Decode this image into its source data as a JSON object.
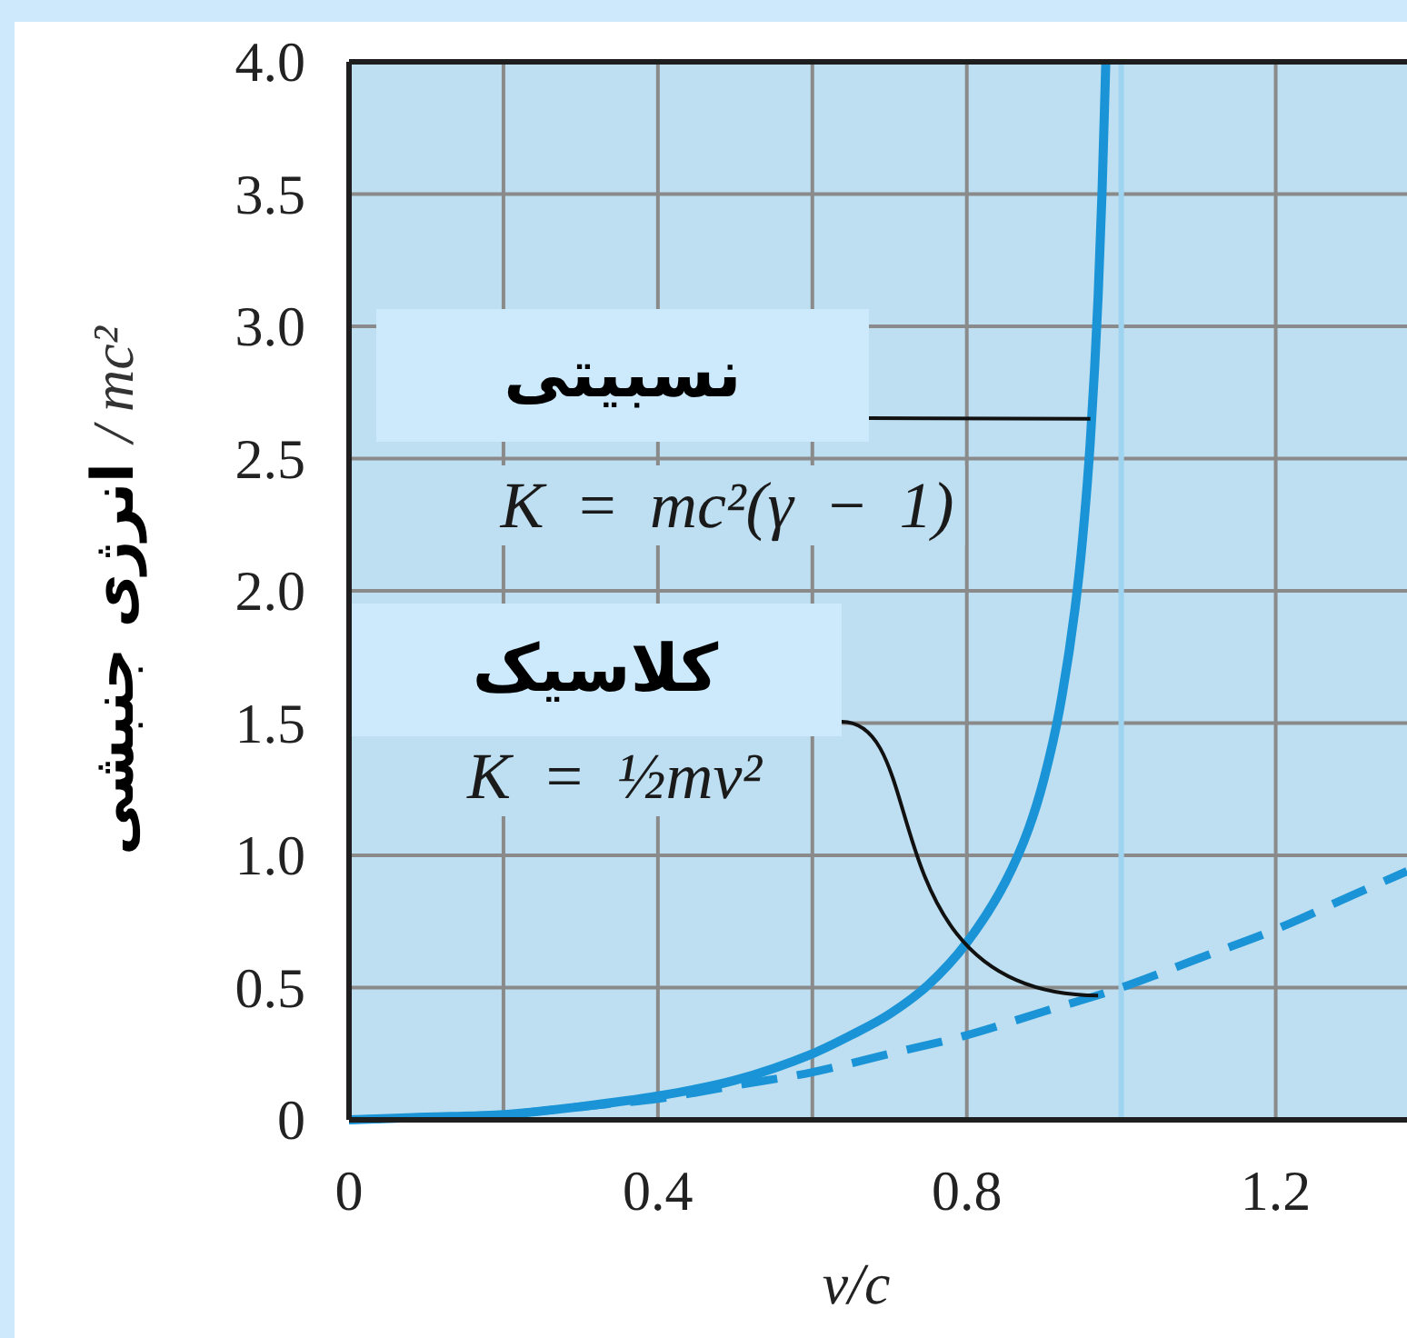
{
  "chart_data": {
    "type": "line",
    "xlabel": "v/c",
    "ylabel": "انرژی جنبشی / mc²",
    "xlim": [
      0,
      1.37
    ],
    "ylim": [
      0,
      4
    ],
    "xticks": [
      0,
      {
        "value": 0.2,
        "label": null
      },
      0.4,
      {
        "value": 0.6,
        "label": null
      },
      0.8,
      {
        "value": 1,
        "label": null
      },
      1.2
    ],
    "yticks": [
      0,
      0.5,
      {
        "value": 1,
        "label": "1.0"
      },
      1.5,
      {
        "value": 2,
        "label": "2.0"
      },
      2.5,
      {
        "value": 3,
        "label": "3.0"
      },
      3.5,
      {
        "value": 4,
        "label": "4.0"
      }
    ],
    "grid": true,
    "series": [
      {
        "color": "#1a94d6",
        "line_style": "solid",
        "x": [
          0,
          0.1,
          0.2,
          0.3,
          0.4,
          0.5,
          0.6,
          0.65,
          0.7,
          0.75,
          0.8,
          0.85,
          0.88,
          0.9,
          0.92,
          0.94,
          0.95,
          0.96,
          0.97,
          0.975,
          0.98
        ],
        "values": [
          0,
          0.01,
          0.02,
          0.05,
          0.09,
          0.15,
          0.25,
          0.32,
          0.4,
          0.51,
          0.67,
          0.9,
          1.1,
          1.29,
          1.55,
          1.93,
          2.2,
          2.57,
          3.11,
          3.5,
          4.0
        ]
      },
      {
        "color": "#1a94d6",
        "line_style": "dashed",
        "x": [
          0,
          0.1,
          0.2,
          0.3,
          0.4,
          0.5,
          0.6,
          0.7,
          0.8,
          0.9,
          1.0,
          1.1,
          1.2,
          1.3,
          1.37
        ],
        "values": [
          0,
          0.01,
          0.02,
          0.05,
          0.08,
          0.13,
          0.18,
          0.25,
          0.32,
          0.41,
          0.5,
          0.61,
          0.72,
          0.85,
          0.94
        ]
      }
    ],
    "ref_lines": [
      {
        "axis": "x",
        "value": 1,
        "color": "#9fd4f0"
      }
    ],
    "annotations": [
      "نسبیتی",
      {
        "text": "K = mc²(γ − 1)",
        "x": 0.96,
        "y": 2.65
      },
      "کلاسیک",
      {
        "text": "K = ½mv²",
        "x": 0.97,
        "y": 0.47
      }
    ]
  }
}
